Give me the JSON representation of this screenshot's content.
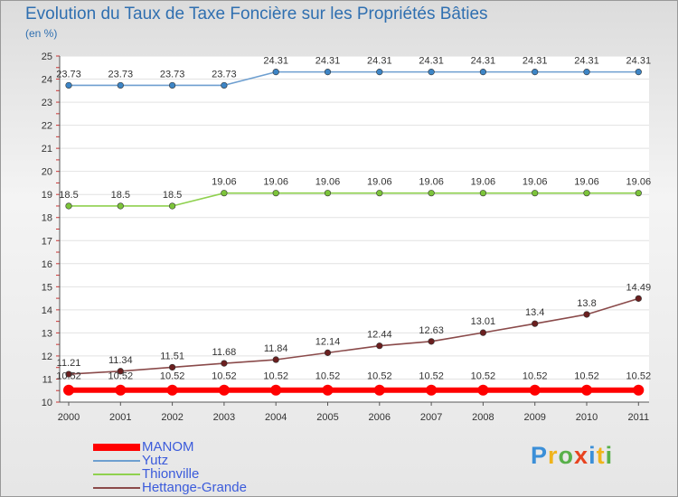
{
  "header": {
    "title": "Evolution du Taux de Taxe Foncière sur les Propriétés Bâties",
    "unit": "(en %)"
  },
  "brand": {
    "letters": [
      {
        "char": "P",
        "color": "#3b8fd8"
      },
      {
        "char": "r",
        "color": "#f0b41c"
      },
      {
        "char": "o",
        "color": "#58b04a"
      },
      {
        "char": "x",
        "color": "#e8431f"
      },
      {
        "char": "i",
        "color": "#3b8fd8"
      },
      {
        "char": "t",
        "color": "#f0b41c"
      },
      {
        "char": "i",
        "color": "#58b04a"
      }
    ]
  },
  "chart_data": {
    "type": "line",
    "title": "Evolution du Taux de Taxe Foncière sur les Propriétés Bâties",
    "ylabel": "(en %)",
    "xlabel": "",
    "ylim": [
      10,
      25
    ],
    "yticks": [
      10,
      11,
      12,
      13,
      14,
      15,
      16,
      17,
      18,
      19,
      20,
      21,
      22,
      23,
      24,
      25
    ],
    "categories": [
      "2000",
      "2001",
      "2002",
      "2003",
      "2004",
      "2005",
      "2006",
      "2007",
      "2008",
      "2009",
      "2010",
      "2011"
    ],
    "legend_position": "bottom-left",
    "series": [
      {
        "name": "MANOM",
        "color": "#ff0000",
        "width": "thick",
        "values": [
          10.52,
          10.52,
          10.52,
          10.52,
          10.52,
          10.52,
          10.52,
          10.52,
          10.52,
          10.52,
          10.52,
          10.52
        ],
        "labels": [
          "10.52",
          "10.52",
          "10.52",
          "10.52",
          "10.52",
          "10.52",
          "10.52",
          "10.52",
          "10.52",
          "10.52",
          "10.52",
          "10.52"
        ]
      },
      {
        "name": "Yutz",
        "color": "#6e9fd0",
        "marker": "#3d85c6",
        "width": "thin",
        "values": [
          23.73,
          23.73,
          23.73,
          23.73,
          24.31,
          24.31,
          24.31,
          24.31,
          24.31,
          24.31,
          24.31,
          24.31
        ],
        "labels": [
          "23.73",
          "23.73",
          "23.73",
          "23.73",
          "24.31",
          "24.31",
          "24.31",
          "24.31",
          "24.31",
          "24.31",
          "24.31",
          "24.31"
        ]
      },
      {
        "name": "Thionville",
        "color": "#8fd14f",
        "marker": "#7cc43a",
        "width": "thin",
        "values": [
          18.5,
          18.5,
          18.5,
          19.06,
          19.06,
          19.06,
          19.06,
          19.06,
          19.06,
          19.06,
          19.06,
          19.06
        ],
        "labels": [
          "18.5",
          "18.5",
          "18.5",
          "19.06",
          "19.06",
          "19.06",
          "19.06",
          "19.06",
          "19.06",
          "19.06",
          "19.06",
          "19.06"
        ]
      },
      {
        "name": "Hettange-Grande",
        "color": "#8a4a4a",
        "marker": "#6b1f1f",
        "width": "thin",
        "values": [
          11.21,
          11.34,
          11.51,
          11.68,
          11.84,
          12.14,
          12.44,
          12.63,
          13.01,
          13.4,
          13.8,
          14.49
        ],
        "labels": [
          "11.21",
          "11.34",
          "11.51",
          "11.68",
          "11.84",
          "12.14",
          "12.44",
          "12.63",
          "13.01",
          "13.4",
          "13.8",
          "14.49"
        ]
      }
    ]
  }
}
